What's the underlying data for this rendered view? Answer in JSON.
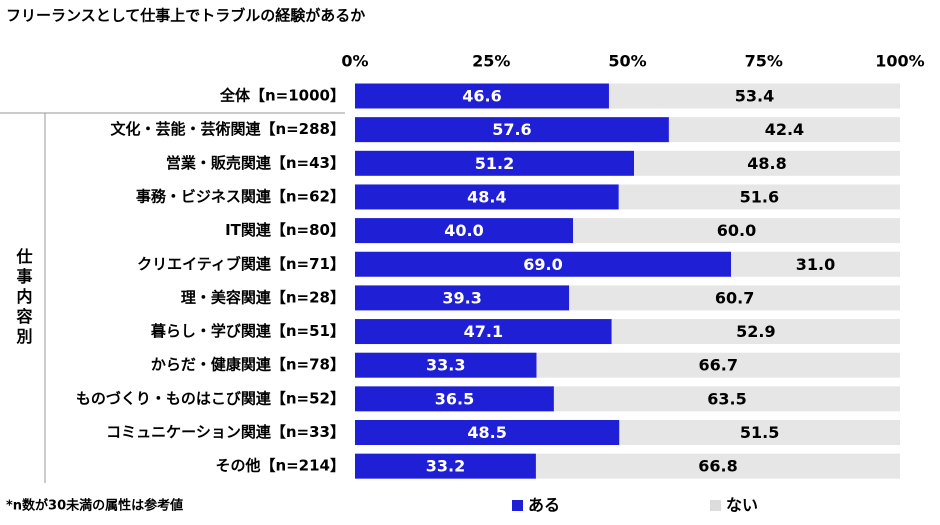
{
  "chart_data": {
    "type": "stacked-barh",
    "title": "フリーランスとして仕事上でトラブルの経験があるか",
    "categories": [
      "全体【n=1000】",
      "文化・芸能・芸術関連【n=288】",
      "営業・販売関連【n=43】",
      "事務・ビジネス関連【n=62】",
      "IT関連【n=80】",
      "クリエイティブ関連【n=71】",
      "理・美容関連【n=28】",
      "暮らし・学び関連【n=51】",
      "からだ・健康関連【n=78】",
      "ものづくり・ものはこび関連【n=52】",
      "コミュニケーション関連【n=33】",
      "その他【n=214】"
    ],
    "group_label": "仕事内容別",
    "series": [
      {
        "name": "ある",
        "color": "#1f1fd6",
        "values": [
          46.6,
          57.6,
          51.2,
          48.4,
          40.0,
          69.0,
          39.3,
          47.1,
          33.3,
          36.5,
          48.5,
          33.2
        ],
        "value_labels": [
          "46.6",
          "57.6",
          "51.2",
          "48.4",
          "40.0",
          "69.0",
          "39.3",
          "47.1",
          "33.3",
          "36.5",
          "48.5",
          "33.2"
        ]
      },
      {
        "name": "ない",
        "color": "#e6e6e6",
        "values": [
          53.4,
          42.4,
          48.8,
          51.6,
          60.0,
          31.0,
          60.7,
          52.9,
          66.7,
          63.5,
          51.5,
          66.8
        ],
        "value_labels": [
          "53.4",
          "42.4",
          "48.8",
          "51.6",
          "60.0",
          "31.0",
          "60.7",
          "52.9",
          "66.7",
          "63.5",
          "51.5",
          "66.8"
        ]
      }
    ],
    "xlim": [
      0,
      100
    ],
    "xticks": [
      {
        "value": 0,
        "label": "0%"
      },
      {
        "value": 25,
        "label": "25%"
      },
      {
        "value": 50,
        "label": "50%"
      },
      {
        "value": 75,
        "label": "75%"
      },
      {
        "value": 100,
        "label": "100%"
      }
    ],
    "footnote": "*n数が30未満の属性は参考値"
  }
}
